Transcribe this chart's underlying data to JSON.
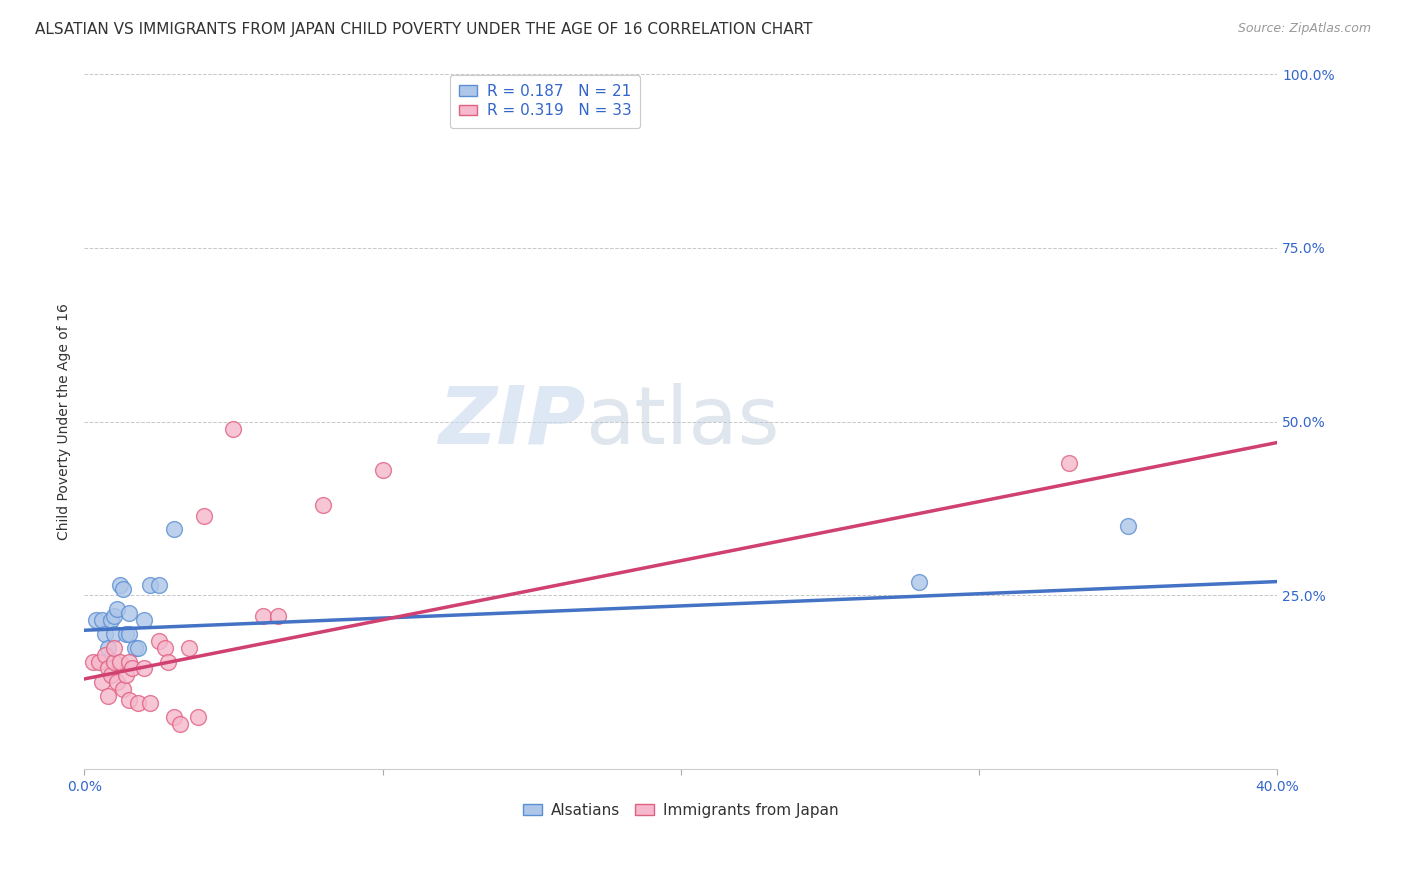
{
  "title": "ALSATIAN VS IMMIGRANTS FROM JAPAN CHILD POVERTY UNDER THE AGE OF 16 CORRELATION CHART",
  "source": "Source: ZipAtlas.com",
  "ylabel": "Child Poverty Under the Age of 16",
  "xlim": [
    0.0,
    0.4
  ],
  "ylim": [
    0.0,
    1.0
  ],
  "yticks": [
    0.0,
    0.25,
    0.5,
    0.75,
    1.0
  ],
  "ytick_labels": [
    "",
    "25.0%",
    "50.0%",
    "75.0%",
    "100.0%"
  ],
  "xticks": [
    0.0,
    0.1,
    0.2,
    0.3,
    0.4
  ],
  "xtick_labels": [
    "0.0%",
    "",
    "",
    "",
    "40.0%"
  ],
  "background_color": "#ffffff",
  "grid_color": "#c8c8c8",
  "watermark_zip": "ZIP",
  "watermark_atlas": "atlas",
  "alsatians_x": [
    0.004,
    0.006,
    0.007,
    0.008,
    0.009,
    0.01,
    0.01,
    0.011,
    0.012,
    0.013,
    0.014,
    0.015,
    0.015,
    0.017,
    0.018,
    0.02,
    0.022,
    0.025,
    0.03,
    0.28,
    0.35
  ],
  "alsatians_y": [
    0.215,
    0.215,
    0.195,
    0.175,
    0.215,
    0.22,
    0.195,
    0.23,
    0.265,
    0.26,
    0.195,
    0.225,
    0.195,
    0.175,
    0.175,
    0.215,
    0.265,
    0.265,
    0.345,
    0.27,
    0.35
  ],
  "japan_x": [
    0.003,
    0.005,
    0.006,
    0.007,
    0.008,
    0.008,
    0.009,
    0.01,
    0.01,
    0.011,
    0.012,
    0.013,
    0.014,
    0.015,
    0.015,
    0.016,
    0.018,
    0.02,
    0.022,
    0.025,
    0.027,
    0.028,
    0.03,
    0.032,
    0.035,
    0.038,
    0.04,
    0.05,
    0.06,
    0.065,
    0.08,
    0.1,
    0.33
  ],
  "japan_y": [
    0.155,
    0.155,
    0.125,
    0.165,
    0.145,
    0.105,
    0.135,
    0.155,
    0.175,
    0.125,
    0.155,
    0.115,
    0.135,
    0.155,
    0.1,
    0.145,
    0.095,
    0.145,
    0.095,
    0.185,
    0.175,
    0.155,
    0.075,
    0.065,
    0.175,
    0.075,
    0.365,
    0.49,
    0.22,
    0.22,
    0.38,
    0.43,
    0.44
  ],
  "als_line_x0": 0.0,
  "als_line_y0": 0.2,
  "als_line_x1": 0.4,
  "als_line_y1": 0.27,
  "jpn_line_x0": 0.0,
  "jpn_line_y0": 0.13,
  "jpn_line_x1": 0.4,
  "jpn_line_y1": 0.47,
  "alsatians_R": 0.187,
  "alsatians_N": 21,
  "japan_R": 0.319,
  "japan_N": 33,
  "alsatians_fill_color": "#aec6e8",
  "alsatians_edge_color": "#5b8fd4",
  "japan_fill_color": "#f5b8cc",
  "japan_edge_color": "#e06080",
  "alsatians_line_color": "#4472c4",
  "japan_line_color": "#d04070",
  "title_fontsize": 11,
  "axis_label_fontsize": 10,
  "tick_fontsize": 10,
  "legend_fontsize": 11,
  "source_fontsize": 9
}
